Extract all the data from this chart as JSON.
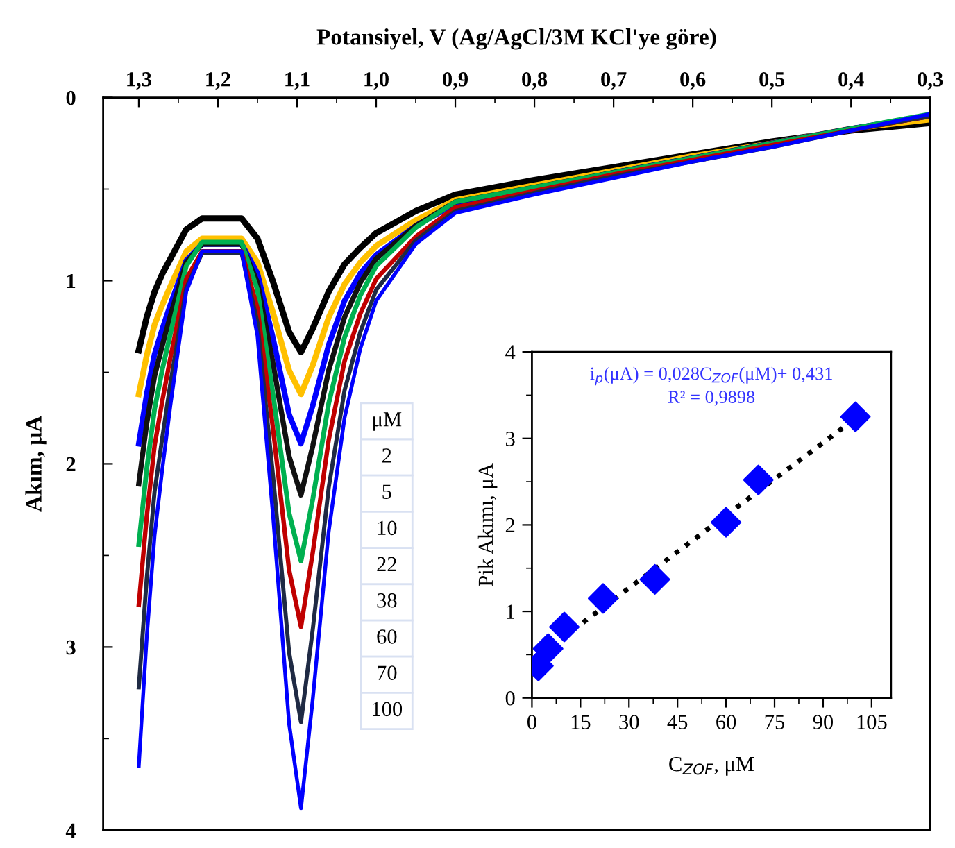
{
  "chart_data": [
    {
      "type": "line",
      "xlabel": "Potansiyel, V (Ag/AgCl/3M KCl'ye göre)",
      "ylabel": "Akım, μA",
      "x": [
        1.3,
        1.29,
        1.28,
        1.27,
        1.26,
        1.24,
        1.22,
        1.17,
        1.15,
        1.13,
        1.11,
        1.095,
        1.08,
        1.06,
        1.04,
        1.02,
        1.0,
        0.95,
        0.9,
        0.8,
        0.7,
        0.6,
        0.5,
        0.4,
        0.3
      ],
      "series": [
        {
          "color": "#000000",
          "values": [
            1.38,
            1.2,
            1.06,
            0.96,
            0.88,
            0.72,
            0.66,
            0.66,
            0.77,
            1.01,
            1.28,
            1.39,
            1.26,
            1.06,
            0.91,
            0.82,
            0.74,
            0.62,
            0.53,
            0.45,
            0.38,
            0.31,
            0.24,
            0.18,
            0.14
          ]
        },
        {
          "color": "#ffc000",
          "values": [
            1.62,
            1.41,
            1.24,
            1.13,
            1.03,
            0.84,
            0.77,
            0.77,
            0.9,
            1.18,
            1.49,
            1.62,
            1.46,
            1.2,
            1.02,
            0.9,
            0.81,
            0.67,
            0.56,
            0.48,
            0.4,
            0.32,
            0.25,
            0.17,
            0.12
          ]
        },
        {
          "color": "#0000ff",
          "values": [
            1.89,
            1.62,
            1.4,
            1.26,
            1.13,
            0.89,
            0.8,
            0.8,
            0.96,
            1.32,
            1.73,
            1.89,
            1.68,
            1.35,
            1.11,
            0.96,
            0.86,
            0.7,
            0.58,
            0.5,
            0.41,
            0.33,
            0.25,
            0.17,
            0.1
          ]
        },
        {
          "color": "#111111",
          "values": [
            2.11,
            1.78,
            1.52,
            1.35,
            1.19,
            0.9,
            0.8,
            0.8,
            1.01,
            1.46,
            1.96,
            2.17,
            1.9,
            1.49,
            1.2,
            1.01,
            0.88,
            0.7,
            0.57,
            0.49,
            0.41,
            0.33,
            0.25,
            0.17,
            0.1
          ]
        },
        {
          "color": "#00b050",
          "values": [
            2.44,
            2.03,
            1.7,
            1.48,
            1.29,
            0.92,
            0.79,
            0.79,
            1.05,
            1.63,
            2.27,
            2.53,
            2.19,
            1.67,
            1.31,
            1.08,
            0.92,
            0.71,
            0.57,
            0.49,
            0.41,
            0.33,
            0.25,
            0.17,
            0.09
          ]
        },
        {
          "color": "#c00000",
          "values": [
            2.77,
            2.29,
            1.9,
            1.65,
            1.42,
            0.99,
            0.84,
            0.84,
            1.15,
            1.82,
            2.58,
            2.89,
            2.48,
            1.87,
            1.44,
            1.18,
            0.99,
            0.76,
            0.6,
            0.51,
            0.42,
            0.34,
            0.26,
            0.18,
            0.1
          ]
        },
        {
          "color": "#1f2a44",
          "values": [
            3.22,
            2.63,
            2.15,
            1.85,
            1.56,
            1.04,
            0.85,
            0.85,
            1.23,
            2.08,
            3.03,
            3.41,
            2.9,
            2.13,
            1.6,
            1.28,
            1.05,
            0.78,
            0.62,
            0.52,
            0.43,
            0.35,
            0.27,
            0.18,
            0.1
          ]
        },
        {
          "color": "#0000ff",
          "values": [
            3.65,
            2.95,
            2.39,
            2.02,
            1.68,
            1.06,
            0.84,
            0.84,
            1.3,
            2.3,
            3.42,
            3.88,
            3.28,
            2.37,
            1.75,
            1.37,
            1.11,
            0.8,
            0.63,
            0.53,
            0.44,
            0.35,
            0.27,
            0.18,
            0.09
          ]
        }
      ],
      "xlim": [
        1.345,
        0.3
      ],
      "xticks": [
        {
          "value": 1.3,
          "label": "1,3"
        },
        {
          "value": 1.25,
          "label": null
        },
        {
          "value": 1.2,
          "label": "1,2"
        },
        {
          "value": 1.15,
          "label": null
        },
        {
          "value": 1.1,
          "label": "1,1"
        },
        {
          "value": 1.05,
          "label": null
        },
        {
          "value": 1.0,
          "label": "1,0"
        },
        {
          "value": 0.95,
          "label": null
        },
        {
          "value": 0.9,
          "label": "0,9"
        },
        {
          "value": 0.85,
          "label": null
        },
        {
          "value": 0.8,
          "label": "0,8"
        },
        {
          "value": 0.75,
          "label": null
        },
        {
          "value": 0.7,
          "label": "0,7"
        },
        {
          "value": 0.65,
          "label": null
        },
        {
          "value": 0.6,
          "label": "0,6"
        },
        {
          "value": 0.55,
          "label": null
        },
        {
          "value": 0.5,
          "label": "0,5"
        },
        {
          "value": 0.45,
          "label": null
        },
        {
          "value": 0.4,
          "label": "0,4"
        },
        {
          "value": 0.35,
          "label": null
        },
        {
          "value": 0.3,
          "label": "0,3"
        }
      ],
      "ylim": [
        4,
        0
      ],
      "yticks": [
        0,
        {
          "value": 0.5,
          "label": null
        },
        1,
        {
          "value": 1.5,
          "label": null
        },
        2,
        {
          "value": 2.5,
          "label": null
        },
        3,
        {
          "value": 3.5,
          "label": null
        },
        4
      ],
      "annotations": [
        "μM",
        "2",
        "5",
        "10",
        "22",
        "38",
        "60",
        "70",
        "100"
      ]
    },
    {
      "type": "scatter",
      "xlabel": "C$_{ZOF}$, μM",
      "ylabel": "Pik Akımı, μA",
      "series": [
        {
          "type": "scatter",
          "marker": "diamond",
          "color": "#0000ff",
          "x": [
            2,
            5,
            10,
            22,
            38,
            60,
            70,
            100
          ],
          "values": [
            0.37,
            0.57,
            0.82,
            1.15,
            1.37,
            2.03,
            2.52,
            3.25
          ]
        },
        {
          "type": "line",
          "line_style": "dotted",
          "color": "#000000",
          "x": [
            0,
            100
          ],
          "values": [
            0.43,
            3.23
          ]
        }
      ],
      "xlim": [
        0,
        111
      ],
      "xticks": [
        0,
        {
          "value": 7.5,
          "label": null
        },
        15,
        {
          "value": 22.5,
          "label": null
        },
        30,
        {
          "value": 37.5,
          "label": null
        },
        45,
        {
          "value": 52.5,
          "label": null
        },
        60,
        {
          "value": 67.5,
          "label": null
        },
        75,
        {
          "value": 82.5,
          "label": null
        },
        90,
        {
          "value": 97.5,
          "label": null
        },
        105
      ],
      "ylim": [
        0,
        4
      ],
      "yticks": [
        0,
        {
          "value": 0.5,
          "label": null
        },
        1,
        {
          "value": 1.5,
          "label": null
        },
        2,
        {
          "value": 2.5,
          "label": null
        },
        3,
        {
          "value": 3.5,
          "label": null
        },
        4
      ],
      "annotations": [
        "i$_{p}$(μA) = 0,028C$_{ZOF}$(μM)+ 0,431",
        "R² = 0,9898"
      ]
    }
  ]
}
